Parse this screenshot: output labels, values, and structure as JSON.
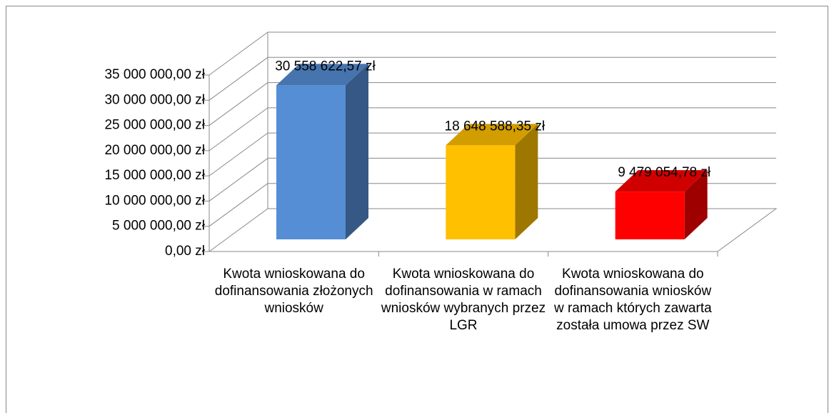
{
  "chart_data": {
    "type": "bar3d",
    "categories": [
      "Kwota wnioskowana do dofinansowania złożonych wniosków",
      "Kwota wnioskowana do dofinansowania w ramach wniosków wybranych przez LGR",
      "Kwota wnioskowana do dofinansowania wniosków w ramach których zawarta została umowa przez SW"
    ],
    "values": [
      30558622.57,
      18648588.35,
      9479054.78
    ],
    "value_labels": [
      "30 558 622,57 zł",
      "18 648 588,35 zł",
      "9 479 054,78 zł"
    ],
    "colors": [
      "#558ed5",
      "#ffc000",
      "#ff0000"
    ],
    "ylim": [
      0,
      35000000
    ],
    "yticks": [
      {
        "value": 0,
        "label": "0,00 zł"
      },
      {
        "value": 5000000,
        "label": "5 000 000,00 zł"
      },
      {
        "value": 10000000,
        "label": "10 000 000,00 zł"
      },
      {
        "value": 15000000,
        "label": "15 000 000,00 zł"
      },
      {
        "value": 20000000,
        "label": "20 000 000,00 zł"
      },
      {
        "value": 25000000,
        "label": "25 000 000,00 zł"
      },
      {
        "value": 30000000,
        "label": "30 000 000,00 zł"
      },
      {
        "value": 35000000,
        "label": "35 000 000,00 zł"
      }
    ],
    "grid": true
  }
}
